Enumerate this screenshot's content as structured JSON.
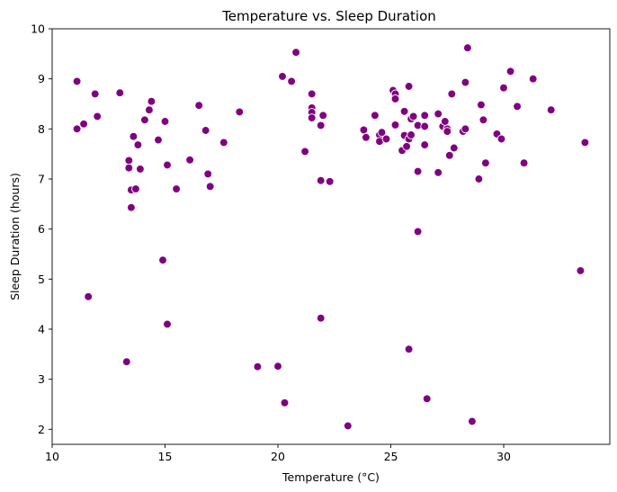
{
  "chart_data": {
    "type": "scatter",
    "title": "Temperature vs. Sleep Duration",
    "xlabel": "Temperature (°C)",
    "ylabel": "Sleep Duration (hours)",
    "xlim": [
      10,
      34.7
    ],
    "ylim": [
      1.7,
      10
    ],
    "xticks": [
      10,
      15,
      20,
      25,
      30
    ],
    "yticks": [
      2,
      3,
      4,
      5,
      6,
      7,
      8,
      9,
      10
    ],
    "grid": false,
    "point_color": "#800080",
    "point_edge_color": "#ffffff",
    "points": [
      [
        11.1,
        8.95
      ],
      [
        11.1,
        8.0
      ],
      [
        11.4,
        8.1
      ],
      [
        11.6,
        4.65
      ],
      [
        11.9,
        8.7
      ],
      [
        12.0,
        8.25
      ],
      [
        13.0,
        8.72
      ],
      [
        13.3,
        3.35
      ],
      [
        13.4,
        7.37
      ],
      [
        13.4,
        7.22
      ],
      [
        13.5,
        6.78
      ],
      [
        13.5,
        6.43
      ],
      [
        13.6,
        7.85
      ],
      [
        13.7,
        6.8
      ],
      [
        13.8,
        7.68
      ],
      [
        13.9,
        7.2
      ],
      [
        14.1,
        8.18
      ],
      [
        14.3,
        8.38
      ],
      [
        14.4,
        8.55
      ],
      [
        14.7,
        7.78
      ],
      [
        14.9,
        5.38
      ],
      [
        15.0,
        8.15
      ],
      [
        15.1,
        4.1
      ],
      [
        15.1,
        7.28
      ],
      [
        15.5,
        6.8
      ],
      [
        16.1,
        7.38
      ],
      [
        16.5,
        8.47
      ],
      [
        16.8,
        7.97
      ],
      [
        16.9,
        7.1
      ],
      [
        17.0,
        6.85
      ],
      [
        17.6,
        7.73
      ],
      [
        18.3,
        8.34
      ],
      [
        19.1,
        3.25
      ],
      [
        20.0,
        3.26
      ],
      [
        20.2,
        9.05
      ],
      [
        20.3,
        2.53
      ],
      [
        20.6,
        8.95
      ],
      [
        20.8,
        9.53
      ],
      [
        21.2,
        7.55
      ],
      [
        21.5,
        8.7
      ],
      [
        21.5,
        8.42
      ],
      [
        21.5,
        8.33
      ],
      [
        21.5,
        8.22
      ],
      [
        21.9,
        8.07
      ],
      [
        21.9,
        6.97
      ],
      [
        21.9,
        4.22
      ],
      [
        22.0,
        8.27
      ],
      [
        22.3,
        6.95
      ],
      [
        23.1,
        2.07
      ],
      [
        23.8,
        7.98
      ],
      [
        23.9,
        7.83
      ],
      [
        24.3,
        8.27
      ],
      [
        24.5,
        7.88
      ],
      [
        24.5,
        7.75
      ],
      [
        24.6,
        7.93
      ],
      [
        24.8,
        7.8
      ],
      [
        25.1,
        8.77
      ],
      [
        25.2,
        8.7
      ],
      [
        25.2,
        8.6
      ],
      [
        25.2,
        8.08
      ],
      [
        25.5,
        7.57
      ],
      [
        25.6,
        8.35
      ],
      [
        25.6,
        7.87
      ],
      [
        25.7,
        7.65
      ],
      [
        25.8,
        8.85
      ],
      [
        25.8,
        7.8
      ],
      [
        25.8,
        3.6
      ],
      [
        25.9,
        8.2
      ],
      [
        25.9,
        7.88
      ],
      [
        26.0,
        8.25
      ],
      [
        26.2,
        8.07
      ],
      [
        26.2,
        7.15
      ],
      [
        26.2,
        5.95
      ],
      [
        26.5,
        8.27
      ],
      [
        26.5,
        8.05
      ],
      [
        26.5,
        7.68
      ],
      [
        26.6,
        2.61
      ],
      [
        27.1,
        8.3
      ],
      [
        27.1,
        7.13
      ],
      [
        27.3,
        8.05
      ],
      [
        27.4,
        8.15
      ],
      [
        27.5,
        8.0
      ],
      [
        27.5,
        7.95
      ],
      [
        27.6,
        7.47
      ],
      [
        27.7,
        8.7
      ],
      [
        27.8,
        7.62
      ],
      [
        28.2,
        7.95
      ],
      [
        28.3,
        8.0
      ],
      [
        28.3,
        8.93
      ],
      [
        28.4,
        9.62
      ],
      [
        28.6,
        2.16
      ],
      [
        28.9,
        7.0
      ],
      [
        29.0,
        8.48
      ],
      [
        29.1,
        8.18
      ],
      [
        29.2,
        7.32
      ],
      [
        29.7,
        7.9
      ],
      [
        29.9,
        7.8
      ],
      [
        30.0,
        8.82
      ],
      [
        30.3,
        9.15
      ],
      [
        30.6,
        8.45
      ],
      [
        30.9,
        7.32
      ],
      [
        31.3,
        9.0
      ],
      [
        32.1,
        8.38
      ],
      [
        33.4,
        5.17
      ],
      [
        33.6,
        7.73
      ]
    ]
  }
}
